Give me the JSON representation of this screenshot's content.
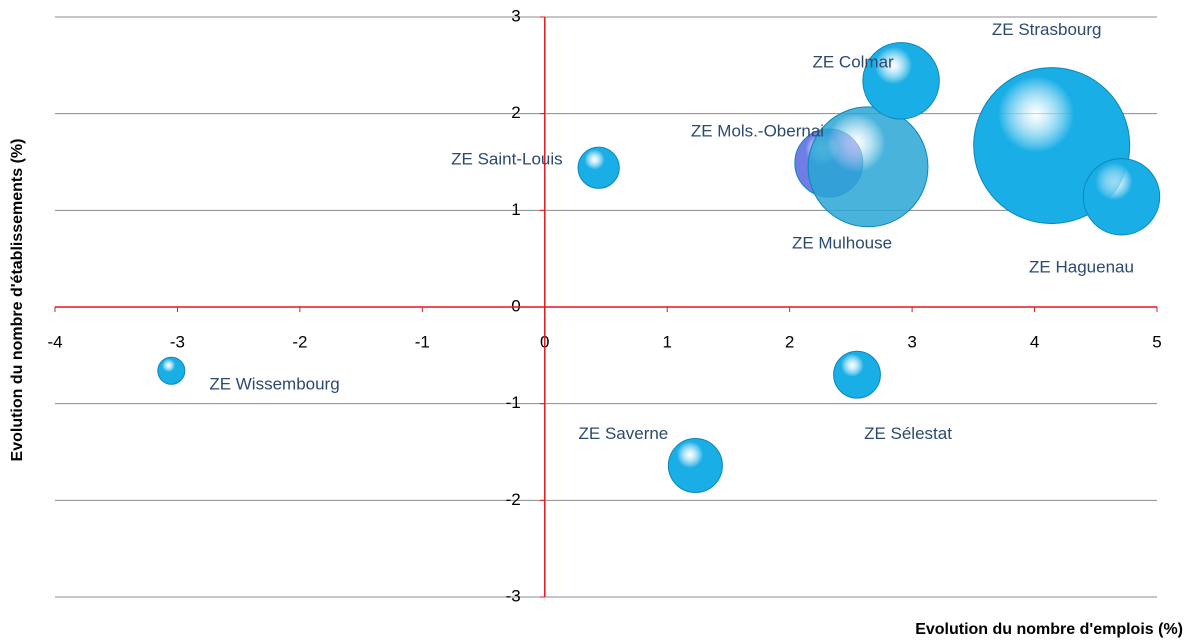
{
  "chart_data": {
    "type": "bubble",
    "x_label": "Evolution du nombre d'emplois (%)",
    "y_label": "Evolution du nombre d'établissements (%)",
    "labels": [
      "ZE Wissembourg",
      "ZE Saint-Louis",
      "ZE Mols.-Obernai",
      "ZE Mulhouse",
      "ZE Colmar",
      "ZE Strasbourg",
      "ZE Haguenau",
      "ZE Sélestat",
      "ZE Saverne"
    ],
    "x": [
      -3.05,
      0.44,
      2.32,
      2.64,
      2.91,
      4.14,
      4.71,
      2.55,
      1.23
    ],
    "y": [
      -0.66,
      1.44,
      1.49,
      1.45,
      2.34,
      1.67,
      1.14,
      -0.7,
      -1.64
    ],
    "sizes": [
      3,
      7,
      19,
      59,
      24,
      100,
      24,
      9,
      12
    ],
    "colors": [
      "#19aee6",
      "#19aee6",
      "#6f7de6",
      "#2aa6d6",
      "#19aee6",
      "#19aee6",
      "#19aee6",
      "#19aee6",
      "#19aee6"
    ],
    "xlim": [
      -4,
      5
    ],
    "xticks": [
      -4,
      -3,
      -2,
      -1,
      0,
      1,
      2,
      3,
      4,
      5
    ],
    "ylim": [
      -3,
      3
    ],
    "yticks": [
      -3,
      -2,
      -1,
      0,
      1,
      2,
      3
    ],
    "grid": true,
    "axis_color": "#e0191e"
  }
}
